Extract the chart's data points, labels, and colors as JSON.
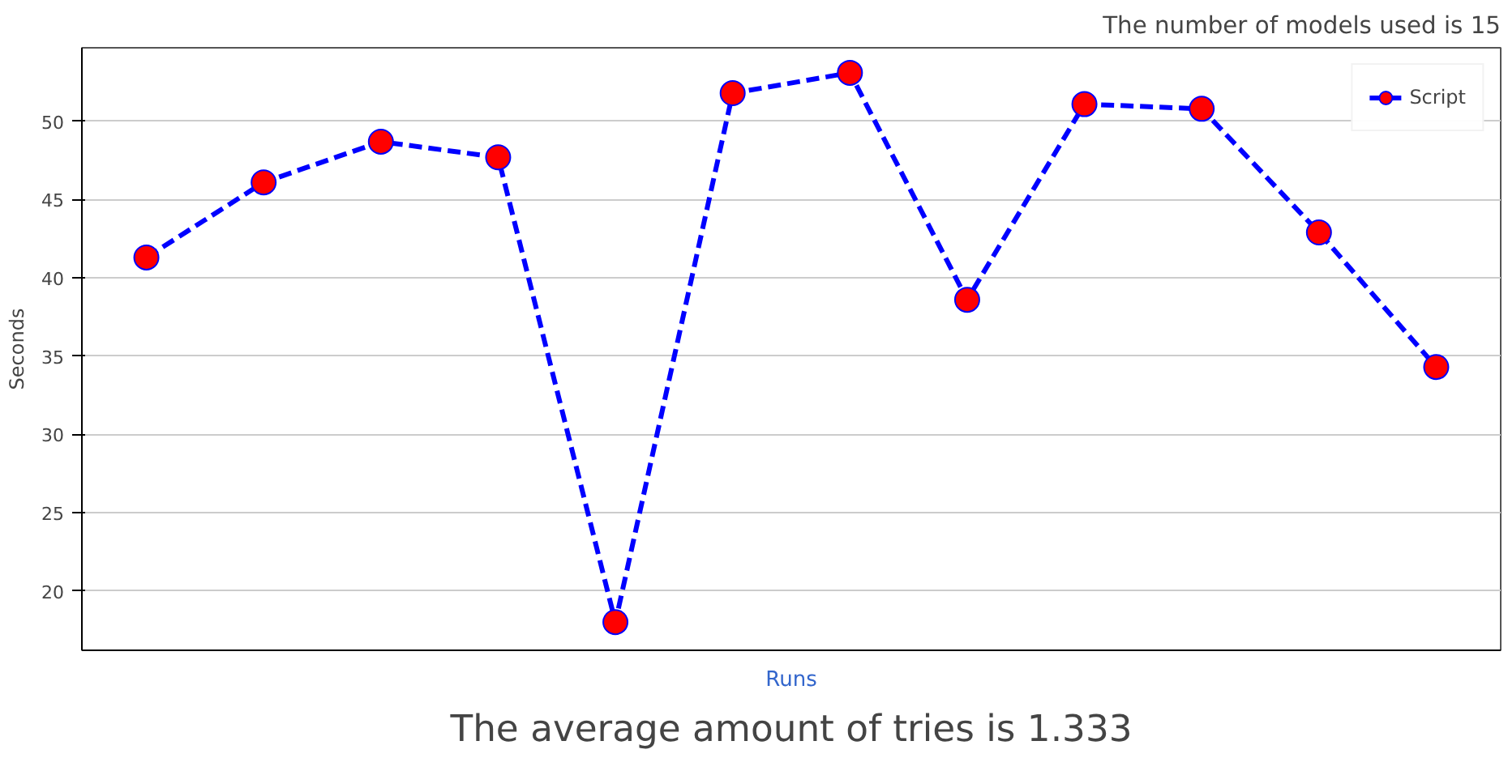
{
  "chart_data": {
    "type": "line",
    "title": "The number of models used is 15",
    "xlabel": "Runs",
    "ylabel": "Seconds",
    "categories": [
      null,
      null,
      null,
      null,
      null,
      null,
      null,
      null,
      null,
      null,
      null,
      null
    ],
    "series": [
      {
        "name": "Script",
        "color": "#0000ff",
        "values": [
          41.3,
          46.1,
          48.7,
          47.7,
          18.0,
          51.8,
          53.1,
          38.6,
          51.1,
          50.8,
          42.9,
          34.3
        ]
      }
    ],
    "ylim": [
      16.2,
      54.7
    ],
    "yticks": [
      20,
      25,
      30,
      35,
      40,
      45,
      50
    ],
    "grid": "y",
    "legend": "top right",
    "marker": "circle",
    "line_style": "dashed",
    "annotations": [
      "The average amount of tries is 1.333"
    ]
  }
}
